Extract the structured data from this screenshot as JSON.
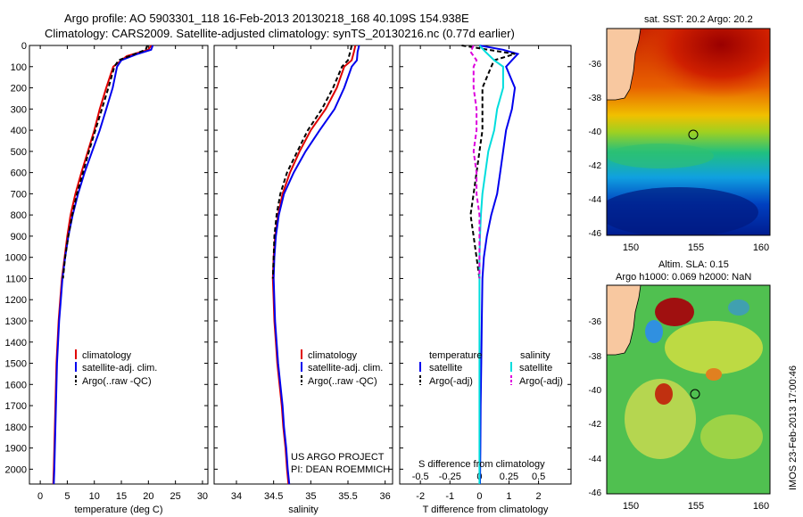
{
  "header": {
    "line1": "Argo profile: AO 5903301_118 16-Feb-2013 20130218_168 40.109S 154.938E",
    "line2": "Climatology: CARS2009. Satellite-adjusted climatology: synTS_20130216.nc (0.77d earlier)"
  },
  "colors": {
    "climatology": "#e00000",
    "satellite": "#0000ee",
    "argo": "#000000",
    "salinity_sat": "#00dddd",
    "salinity_argo": "#dd00dd"
  },
  "chart_data": [
    {
      "type": "line",
      "name": "temperature-profile",
      "xlabel": "temperature (deg C)",
      "xlim": [
        -2,
        31
      ],
      "ylim": [
        2070,
        0
      ],
      "xticks": [
        0,
        5,
        10,
        15,
        20,
        25,
        30
      ],
      "yticks": [
        0,
        100,
        200,
        300,
        400,
        500,
        600,
        700,
        800,
        900,
        1000,
        1100,
        1200,
        1300,
        1400,
        1500,
        1600,
        1700,
        1800,
        1900,
        2000
      ],
      "legend": [
        "climatology",
        "satellite-adj. clim.",
        "Argo(..raw -QC)"
      ],
      "series": [
        {
          "name": "climatology",
          "color": "#e00000",
          "dash": "",
          "points": [
            [
              20.5,
              0
            ],
            [
              20,
              20
            ],
            [
              16,
              50
            ],
            [
              13.5,
              100
            ],
            [
              12.2,
              200
            ],
            [
              11,
              300
            ],
            [
              10,
              400
            ],
            [
              8.8,
              500
            ],
            [
              7.6,
              600
            ],
            [
              6.5,
              700
            ],
            [
              5.6,
              800
            ],
            [
              5.0,
              900
            ],
            [
              4.5,
              1000
            ],
            [
              4.0,
              1100
            ],
            [
              3.7,
              1200
            ],
            [
              3.4,
              1300
            ],
            [
              3.2,
              1400
            ],
            [
              3.0,
              1500
            ],
            [
              2.9,
              1600
            ],
            [
              2.8,
              1700
            ],
            [
              2.7,
              1800
            ],
            [
              2.6,
              1900
            ],
            [
              2.5,
              2000
            ],
            [
              2.4,
              2070
            ]
          ]
        },
        {
          "name": "satellite",
          "color": "#0000ee",
          "dash": "",
          "points": [
            [
              20.8,
              0
            ],
            [
              20.5,
              20
            ],
            [
              18,
              40
            ],
            [
              15,
              70
            ],
            [
              14.2,
              100
            ],
            [
              13.4,
              200
            ],
            [
              12.2,
              300
            ],
            [
              11,
              400
            ],
            [
              9.6,
              500
            ],
            [
              8.2,
              600
            ],
            [
              7.0,
              700
            ],
            [
              6.0,
              800
            ],
            [
              5.2,
              900
            ],
            [
              4.6,
              1000
            ],
            [
              4.1,
              1100
            ],
            [
              3.8,
              1200
            ],
            [
              3.5,
              1300
            ],
            [
              3.3,
              1400
            ],
            [
              3.1,
              1500
            ],
            [
              3.0,
              1600
            ],
            [
              2.9,
              1700
            ],
            [
              2.8,
              1800
            ],
            [
              2.7,
              1900
            ],
            [
              2.6,
              2000
            ],
            [
              2.5,
              2070
            ]
          ]
        },
        {
          "name": "argo",
          "color": "#000000",
          "dash": "5,3",
          "points": [
            [
              19.8,
              0
            ],
            [
              19.5,
              20
            ],
            [
              17.5,
              40
            ],
            [
              14.5,
              70
            ],
            [
              13.7,
              100
            ],
            [
              12.6,
              200
            ],
            [
              11.4,
              300
            ],
            [
              10.2,
              400
            ],
            [
              9.0,
              500
            ],
            [
              7.9,
              600
            ],
            [
              6.8,
              700
            ],
            [
              5.9,
              800
            ],
            [
              5.2,
              900
            ],
            [
              4.6,
              1000
            ],
            [
              4.2,
              1100
            ]
          ]
        }
      ]
    },
    {
      "type": "line",
      "name": "salinity-profile",
      "xlabel": "salinity",
      "xlim": [
        33.7,
        36.1
      ],
      "ylim": [
        2070,
        0
      ],
      "xticks": [
        34,
        34.5,
        35,
        35.5,
        36
      ],
      "legend": [
        "climatology",
        "satellite-adj. clim.",
        "Argo(..raw -QC)"
      ],
      "annotations": [
        "US ARGO PROJECT",
        "PI: DEAN ROEMMICH"
      ],
      "series": [
        {
          "name": "climatology",
          "color": "#e00000",
          "dash": "",
          "points": [
            [
              35.6,
              0
            ],
            [
              35.58,
              30
            ],
            [
              35.55,
              70
            ],
            [
              35.45,
              100
            ],
            [
              35.35,
              200
            ],
            [
              35.2,
              300
            ],
            [
              35.0,
              400
            ],
            [
              34.85,
              500
            ],
            [
              34.72,
              600
            ],
            [
              34.62,
              700
            ],
            [
              34.56,
              800
            ],
            [
              34.52,
              900
            ],
            [
              34.5,
              1000
            ],
            [
              34.49,
              1100
            ],
            [
              34.5,
              1200
            ],
            [
              34.51,
              1300
            ],
            [
              34.53,
              1400
            ],
            [
              34.55,
              1500
            ],
            [
              34.58,
              1600
            ],
            [
              34.61,
              1700
            ],
            [
              34.63,
              1800
            ],
            [
              34.66,
              1900
            ],
            [
              34.68,
              2000
            ],
            [
              34.7,
              2070
            ]
          ]
        },
        {
          "name": "satellite",
          "color": "#0000ee",
          "dash": "",
          "points": [
            [
              35.65,
              0
            ],
            [
              35.63,
              30
            ],
            [
              35.62,
              70
            ],
            [
              35.55,
              100
            ],
            [
              35.45,
              200
            ],
            [
              35.32,
              300
            ],
            [
              35.12,
              400
            ],
            [
              34.93,
              500
            ],
            [
              34.77,
              600
            ],
            [
              34.64,
              700
            ],
            [
              34.57,
              800
            ],
            [
              34.53,
              900
            ],
            [
              34.51,
              1000
            ],
            [
              34.5,
              1100
            ],
            [
              34.51,
              1200
            ],
            [
              34.52,
              1300
            ],
            [
              34.54,
              1400
            ],
            [
              34.56,
              1500
            ],
            [
              34.59,
              1600
            ],
            [
              34.62,
              1700
            ],
            [
              34.64,
              1800
            ],
            [
              34.67,
              1900
            ],
            [
              34.69,
              2000
            ],
            [
              34.71,
              2070
            ]
          ]
        },
        {
          "name": "argo",
          "color": "#000000",
          "dash": "5,3",
          "points": [
            [
              35.55,
              0
            ],
            [
              35.53,
              30
            ],
            [
              35.5,
              70
            ],
            [
              35.42,
              100
            ],
            [
              35.3,
              200
            ],
            [
              35.15,
              300
            ],
            [
              34.96,
              400
            ],
            [
              34.82,
              500
            ],
            [
              34.68,
              600
            ],
            [
              34.59,
              700
            ],
            [
              34.54,
              800
            ],
            [
              34.51,
              900
            ],
            [
              34.5,
              1000
            ],
            [
              34.49,
              1100
            ]
          ]
        }
      ]
    },
    {
      "type": "line",
      "name": "difference-profile",
      "xlabel": "T difference from climatology",
      "xlabel_top": "S difference from climatology",
      "xlim": [
        -2.7,
        3.1
      ],
      "ylim": [
        2070,
        0
      ],
      "xticks": [
        -2,
        -1,
        0,
        1,
        2
      ],
      "top_ticks": [
        "-0.5",
        "-0.25",
        "0",
        "0.25",
        "0.5"
      ],
      "top_tick_positions": [
        -2,
        -1,
        0,
        1,
        2
      ],
      "legend_titles": [
        "temperature",
        "salinity"
      ],
      "legend": [
        "satellite",
        "Argo(-adj)",
        "satellite",
        "Argo(-adj)"
      ],
      "series": [
        {
          "name": "T satellite",
          "color": "#0000ee",
          "dash": "",
          "points": [
            [
              0,
              0
            ],
            [
              0.8,
              20
            ],
            [
              1.3,
              40
            ],
            [
              1.1,
              70
            ],
            [
              0.9,
              100
            ],
            [
              1.2,
              200
            ],
            [
              1.1,
              300
            ],
            [
              0.9,
              400
            ],
            [
              0.8,
              500
            ],
            [
              0.7,
              600
            ],
            [
              0.6,
              700
            ],
            [
              0.4,
              800
            ],
            [
              0.25,
              900
            ],
            [
              0.15,
              1000
            ],
            [
              0.1,
              1100
            ],
            [
              0.08,
              1300
            ],
            [
              0.06,
              1500
            ],
            [
              0.04,
              1700
            ],
            [
              0.03,
              1900
            ],
            [
              0.02,
              2070
            ]
          ]
        },
        {
          "name": "T argo",
          "color": "#000000",
          "dash": "5,3",
          "points": [
            [
              -0.6,
              0
            ],
            [
              0.3,
              20
            ],
            [
              1.2,
              40
            ],
            [
              0.5,
              70
            ],
            [
              0.4,
              100
            ],
            [
              0.1,
              200
            ],
            [
              0.1,
              300
            ],
            [
              0.1,
              400
            ],
            [
              0.0,
              500
            ],
            [
              -0.1,
              600
            ],
            [
              -0.2,
              700
            ],
            [
              -0.3,
              800
            ],
            [
              -0.2,
              900
            ],
            [
              -0.1,
              1000
            ],
            [
              0.0,
              1100
            ]
          ]
        },
        {
          "name": "S satellite",
          "color": "#00dddd",
          "dash": "",
          "points": [
            [
              0,
              0
            ],
            [
              0.2,
              30
            ],
            [
              0.5,
              70
            ],
            [
              0.8,
              100
            ],
            [
              0.8,
              200
            ],
            [
              0.6,
              300
            ],
            [
              0.5,
              400
            ],
            [
              0.3,
              500
            ],
            [
              0.2,
              600
            ],
            [
              0.1,
              700
            ],
            [
              0.05,
              800
            ],
            [
              0.02,
              900
            ],
            [
              0.0,
              1000
            ],
            [
              0.0,
              1200
            ],
            [
              0.0,
              1500
            ],
            [
              0.0,
              1800
            ],
            [
              0.0,
              2070
            ]
          ]
        },
        {
          "name": "S argo",
          "color": "#dd00dd",
          "dash": "5,3",
          "points": [
            [
              -0.2,
              0
            ],
            [
              -0.3,
              30
            ],
            [
              -0.1,
              70
            ],
            [
              -0.2,
              100
            ],
            [
              -0.2,
              200
            ],
            [
              -0.1,
              300
            ],
            [
              -0.1,
              400
            ],
            [
              -0.2,
              500
            ],
            [
              -0.1,
              600
            ],
            [
              -0.1,
              700
            ],
            [
              0.0,
              800
            ],
            [
              0.0,
              900
            ],
            [
              0.0,
              1000
            ],
            [
              0.0,
              1100
            ]
          ]
        }
      ]
    }
  ],
  "maps": {
    "sst": {
      "title": "sat. SST: 20.2  Argo: 20.2",
      "xticks": [
        "150",
        "155",
        "160"
      ],
      "yticks": [
        "-36",
        "-38",
        "-40",
        "-42",
        "-44",
        "-46"
      ]
    },
    "sla": {
      "title_line1": "Altim. SLA: 0.15",
      "title_line2": "Argo h1000: 0.069 h2000: NaN",
      "xticks": [
        "150",
        "155",
        "160"
      ],
      "yticks": [
        "-36",
        "-38",
        "-40",
        "-42",
        "-44",
        "-46"
      ]
    },
    "credit": "IMOS 23-Feb-2013 17:00:46"
  }
}
